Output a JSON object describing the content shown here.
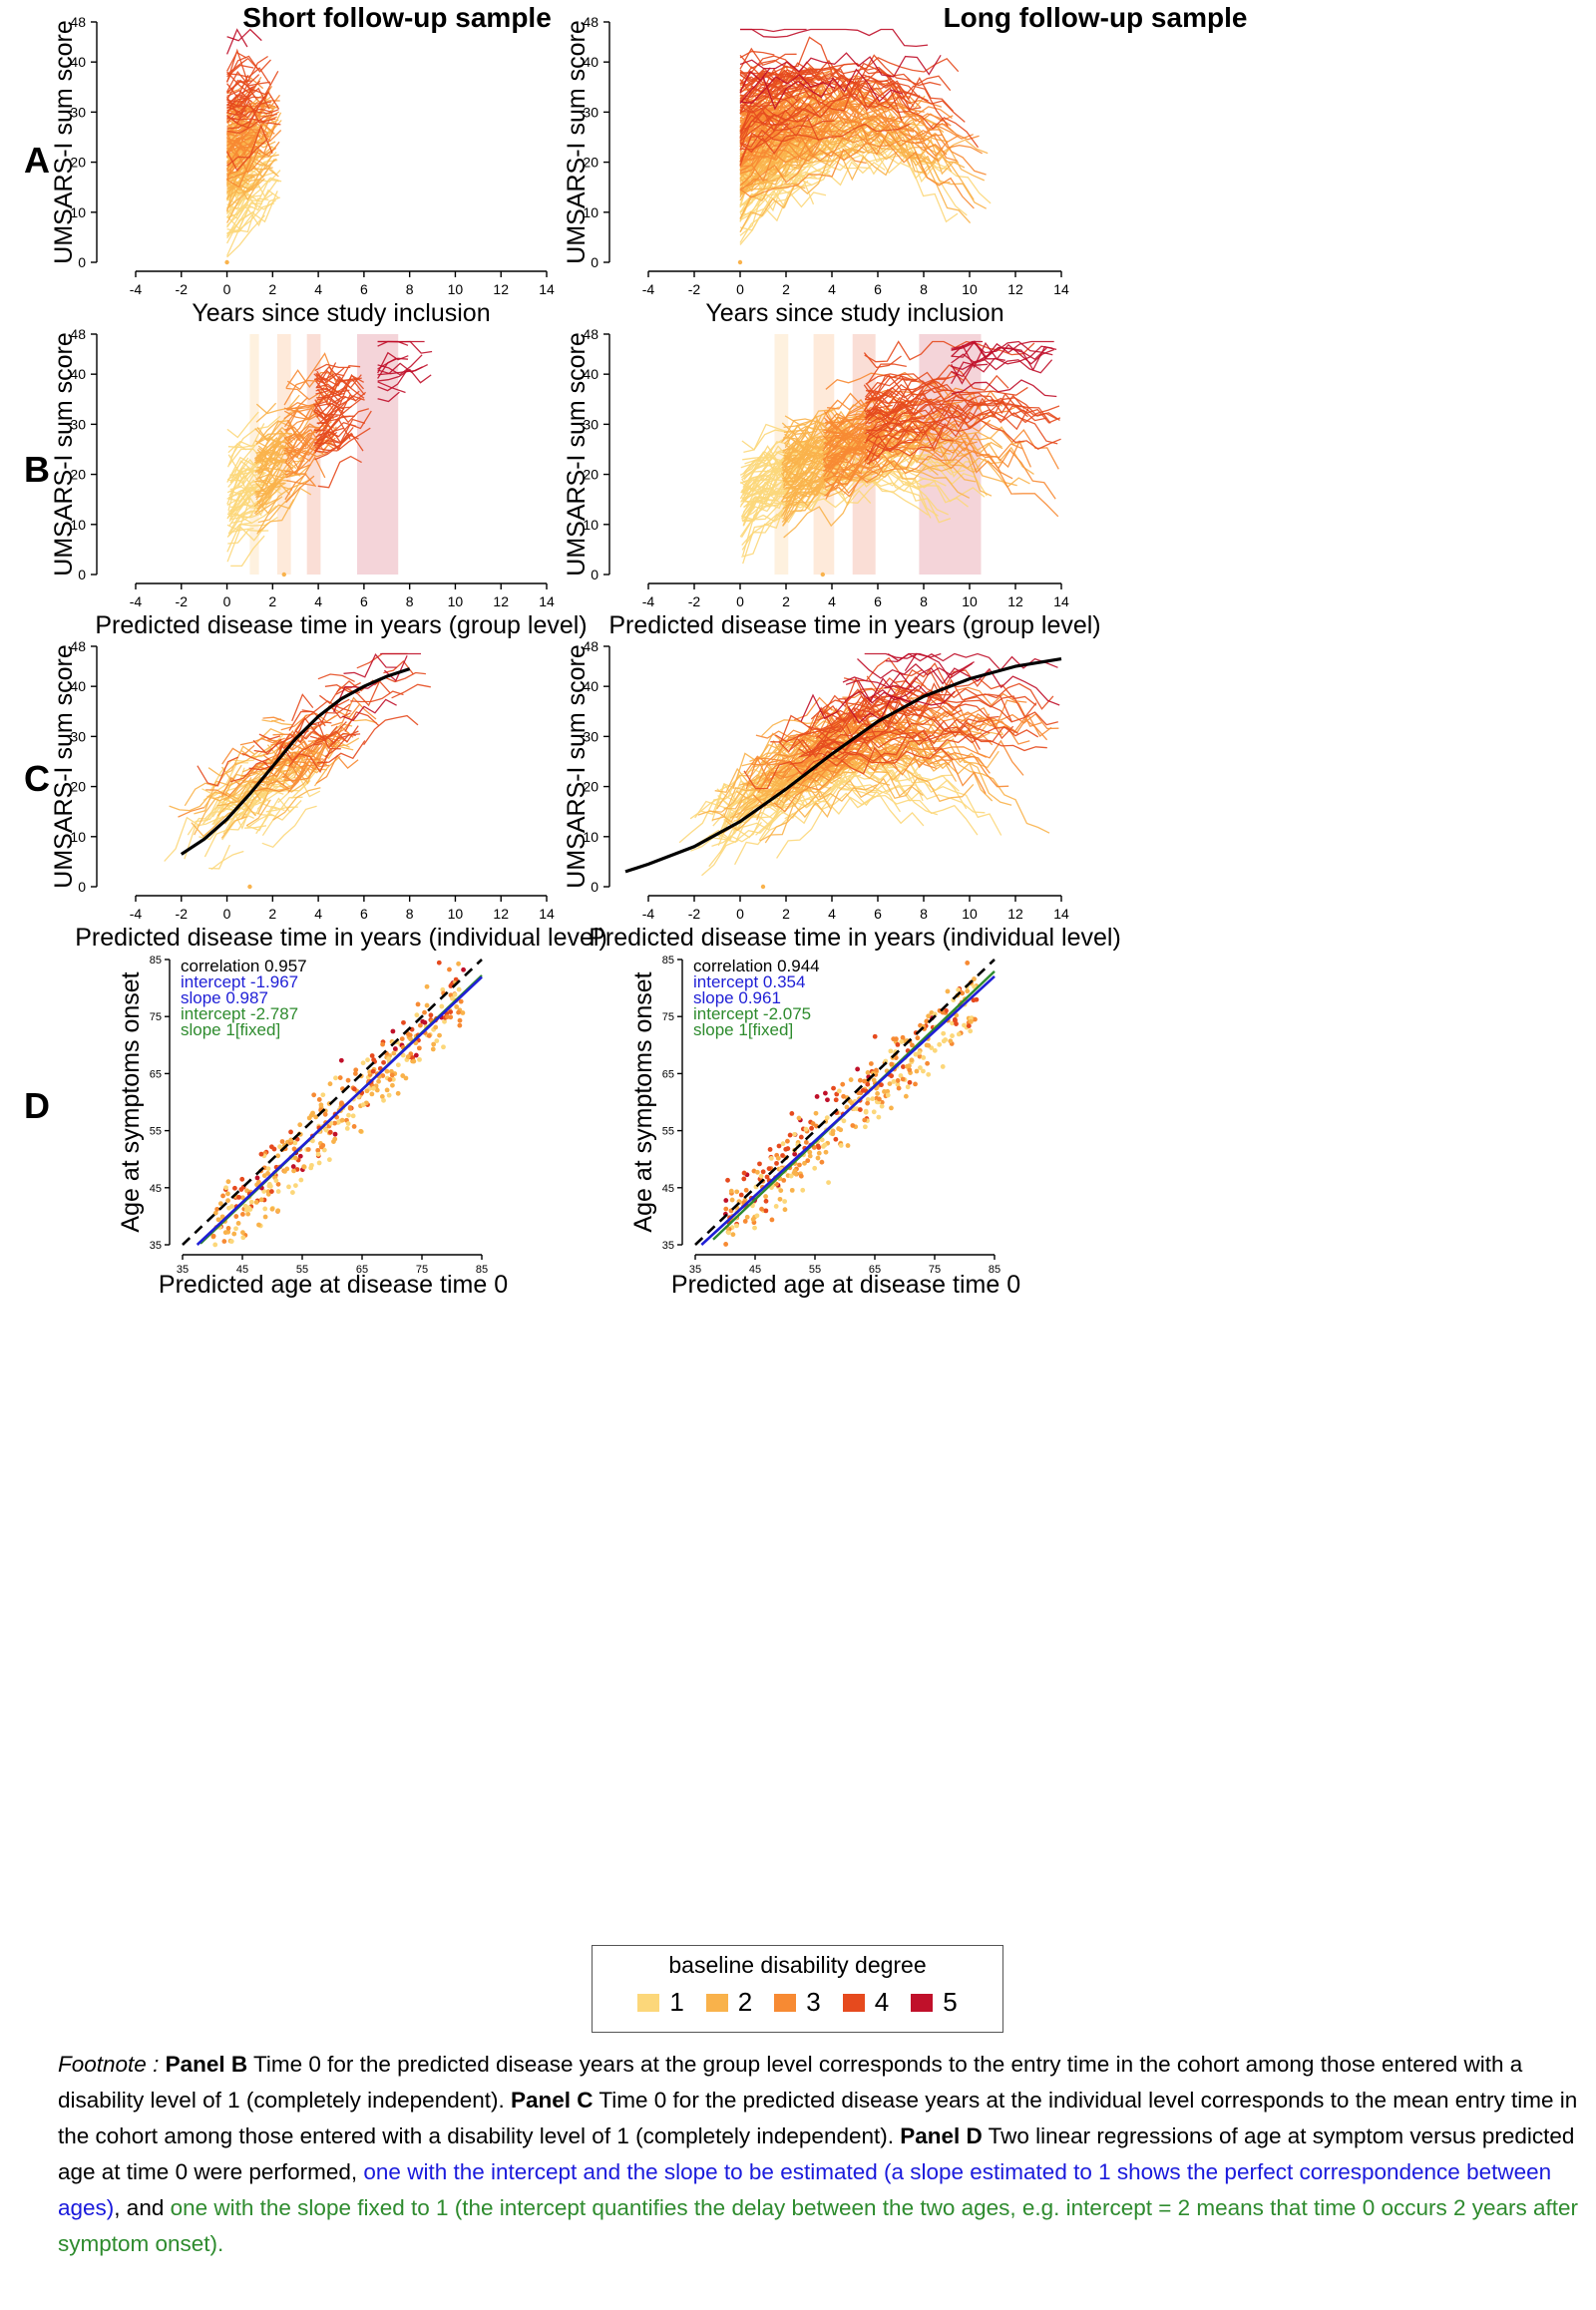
{
  "column_titles": [
    "Short follow-up sample",
    "Long follow-up sample"
  ],
  "row_labels": [
    "A",
    "B",
    "C",
    "D"
  ],
  "colors": {
    "deg1": "#fcd77a",
    "deg2": "#f9b24b",
    "deg3": "#f78a33",
    "deg4": "#e64a1e",
    "deg5": "#c0102a",
    "fit": "#000000",
    "regression_free": "#1f1fd6",
    "regression_fixed": "#2e8b2e",
    "identity": "#000000"
  },
  "legend": {
    "title": "baseline disability degree",
    "items": [
      "1",
      "2",
      "3",
      "4",
      "5"
    ]
  },
  "chart_data": [
    {
      "id": "A-short",
      "type": "line",
      "panel": "A",
      "sample": "Short follow-up sample",
      "xlabel": "Years since study inclusion",
      "ylabel": "UMSARS-I sum score",
      "xlim": [
        -4,
        14
      ],
      "ylim": [
        0,
        48
      ],
      "xticks": [
        "-4",
        "-2",
        "0",
        "2",
        "4",
        "6",
        "8",
        "10",
        "12",
        "14"
      ],
      "yticks": [
        "0",
        "10",
        "20",
        "30",
        "40",
        "48"
      ],
      "note": "individual trajectories colored by baseline disability degree; follow-up up to ~2.5 years"
    },
    {
      "id": "A-long",
      "type": "line",
      "panel": "A",
      "sample": "Long follow-up sample",
      "xlabel": "Years since study inclusion",
      "ylabel": "UMSARS-I sum score",
      "xlim": [
        -4,
        14
      ],
      "ylim": [
        0,
        48
      ],
      "xticks": [
        "-4",
        "-2",
        "0",
        "2",
        "4",
        "6",
        "8",
        "10",
        "12",
        "14"
      ],
      "yticks": [
        "0",
        "10",
        "20",
        "30",
        "40",
        "48"
      ],
      "note": "individual trajectories; follow-up up to ~12 years"
    },
    {
      "id": "B-short",
      "type": "line",
      "panel": "B",
      "sample": "Short follow-up sample",
      "xlabel": "Predicted disease time in years (group level)",
      "ylabel": "UMSARS-I sum score",
      "xlim": [
        -4,
        14
      ],
      "ylim": [
        0,
        48
      ],
      "xticks": [
        "-4",
        "-2",
        "0",
        "2",
        "4",
        "6",
        "8",
        "10",
        "12",
        "14"
      ],
      "yticks": [
        "0",
        "10",
        "20",
        "30",
        "40",
        "48"
      ],
      "group_onsets": [
        0,
        1.2,
        2.5,
        3.8,
        6.6
      ],
      "group_bands": [
        [
          1.0,
          1.4
        ],
        [
          2.2,
          2.8
        ],
        [
          3.5,
          4.1
        ],
        [
          5.7,
          7.5
        ]
      ]
    },
    {
      "id": "B-long",
      "type": "line",
      "panel": "B",
      "sample": "Long follow-up sample",
      "xlabel": "Predicted disease time in years (group level)",
      "ylabel": "UMSARS-I sum score",
      "xlim": [
        -4,
        14
      ],
      "ylim": [
        0,
        48
      ],
      "xticks": [
        "-4",
        "-2",
        "0",
        "2",
        "4",
        "6",
        "8",
        "10",
        "12",
        "14"
      ],
      "yticks": [
        "0",
        "10",
        "20",
        "30",
        "40",
        "48"
      ],
      "group_onsets": [
        0,
        1.8,
        3.6,
        5.4,
        9.2
      ],
      "group_bands": [
        [
          1.5,
          2.1
        ],
        [
          3.2,
          4.1
        ],
        [
          4.9,
          5.9
        ],
        [
          7.8,
          10.5
        ]
      ]
    },
    {
      "id": "C-short",
      "type": "line",
      "panel": "C",
      "sample": "Short follow-up sample",
      "xlabel": "Predicted disease time in years (individual level)",
      "ylabel": "UMSARS-I sum score",
      "xlim": [
        -4,
        14
      ],
      "ylim": [
        0,
        48
      ],
      "xticks": [
        "-4",
        "-2",
        "0",
        "2",
        "4",
        "6",
        "8",
        "10",
        "12",
        "14"
      ],
      "yticks": [
        "0",
        "10",
        "20",
        "30",
        "40",
        "48"
      ],
      "fit_curve": {
        "x": [
          -2,
          -1,
          0,
          1,
          2,
          3,
          4,
          5,
          6,
          7,
          8
        ],
        "y": [
          6.5,
          9.5,
          13.5,
          18.5,
          24.0,
          29.5,
          34.0,
          37.5,
          40.0,
          42.0,
          43.5
        ]
      }
    },
    {
      "id": "C-long",
      "type": "line",
      "panel": "C",
      "sample": "Long follow-up sample",
      "xlabel": "Predicted disease time in years (individual level)",
      "ylabel": "UMSARS-I sum score",
      "xlim": [
        -4,
        14
      ],
      "ylim": [
        0,
        48
      ],
      "xticks": [
        "-4",
        "-2",
        "0",
        "2",
        "4",
        "6",
        "8",
        "10",
        "12",
        "14"
      ],
      "yticks": [
        "0",
        "10",
        "20",
        "30",
        "40",
        "48"
      ],
      "fit_curve": {
        "x": [
          -5,
          -4,
          -2,
          0,
          2,
          4,
          6,
          8,
          10,
          12,
          14
        ],
        "y": [
          3.0,
          4.5,
          8.0,
          13.0,
          19.5,
          26.5,
          33.0,
          38.0,
          41.5,
          44.0,
          45.5
        ]
      }
    },
    {
      "id": "D-short",
      "type": "scatter",
      "panel": "D",
      "sample": "Short follow-up sample",
      "xlabel": "Predicted age at disease time 0",
      "ylabel": "Age at symptoms onset",
      "xlim": [
        35,
        85
      ],
      "ylim": [
        35,
        85
      ],
      "xticks": [
        "35",
        "45",
        "55",
        "65",
        "75",
        "85"
      ],
      "yticks": [
        "35",
        "45",
        "55",
        "65",
        "75",
        "85"
      ],
      "stats": [
        "correlation 0.957",
        "intercept -1.967",
        "slope 0.987",
        "intercept -2.787",
        "slope 1[fixed]"
      ],
      "regression_free": {
        "intercept": -1.967,
        "slope": 0.987
      },
      "regression_fixed": {
        "intercept": -2.787,
        "slope": 1
      }
    },
    {
      "id": "D-long",
      "type": "scatter",
      "panel": "D",
      "sample": "Long follow-up sample",
      "xlabel": "Predicted age at disease time 0",
      "ylabel": "Age at symptoms onset",
      "xlim": [
        35,
        85
      ],
      "ylim": [
        35,
        85
      ],
      "xticks": [
        "35",
        "45",
        "55",
        "65",
        "75",
        "85"
      ],
      "yticks": [
        "35",
        "45",
        "55",
        "65",
        "75",
        "85"
      ],
      "stats": [
        "correlation 0.944",
        "intercept 0.354",
        "slope 0.961",
        "intercept -2.075",
        "slope 1[fixed]"
      ],
      "regression_free": {
        "intercept": 0.354,
        "slope": 0.961
      },
      "regression_fixed": {
        "intercept": -2.075,
        "slope": 1
      }
    }
  ],
  "footnote": {
    "lead": "Footnote : ",
    "b_head": "Panel B",
    "b_text": " Time 0 for the predicted disease years at the group level corresponds to the entry time in the cohort among those entered with a disability level of 1 (completely independent). ",
    "c_head": "Panel C",
    "c_text": " Time 0 for the predicted disease years at the individual level corresponds to the mean entry time in the cohort among those entered with a disability level of 1 (completely independent). ",
    "d_head": "Panel D",
    "d_text": " Two linear regressions of age at symptom versus predicted age at time 0 were performed, ",
    "d_blue": "one with the intercept and the slope to be estimated (a slope estimated to 1 shows the perfect correspondence between ages)",
    "d_mid": ", and ",
    "d_green": "one with the slope fixed to 1 (the intercept quantifies the delay between the two ages, e.g. intercept = 2 means that time 0 occurs 2 years after symptom onset)."
  }
}
